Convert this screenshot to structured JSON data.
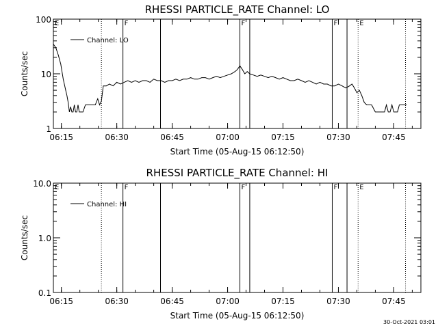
{
  "chart_data": [
    {
      "type": "line",
      "title": "RHESSI PARTICLE_RATE Channel: LO",
      "xlabel": "Start Time (05-Aug-15 06:12:50)",
      "ylabel": "Counts/sec",
      "y_scale": "log",
      "ylim": [
        1,
        100
      ],
      "xlim": [
        "06:12:50",
        "07:52:20"
      ],
      "x_ticks": [
        "06:15",
        "06:30",
        "06:45",
        "07:00",
        "07:15",
        "07:30",
        "07:45"
      ],
      "y_ticks": [
        "1",
        "10",
        "100"
      ],
      "legend": {
        "entries": [
          "Channel: LO"
        ],
        "placement": "top-left"
      },
      "grid": false,
      "flags": [
        {
          "label": "E",
          "time": "06:12:50",
          "style": "dotted"
        },
        {
          "time": "06:25:50",
          "style": "dotted"
        },
        {
          "label": "F",
          "time": "06:31:40",
          "style": "solid"
        },
        {
          "time": "06:41:50",
          "style": "solid"
        },
        {
          "label": "F",
          "time": "07:03:20",
          "style": "solid"
        },
        {
          "time": "07:06:00",
          "style": "solid"
        },
        {
          "label": "F",
          "time": "07:28:20",
          "style": "solid"
        },
        {
          "time": "07:32:20",
          "style": "solid"
        },
        {
          "label": "E",
          "time": "07:35:20",
          "style": "dotted"
        },
        {
          "time": "07:48:10",
          "style": "dotted"
        }
      ],
      "series": [
        {
          "name": "Channel: LO",
          "x": [
            "06:12:50",
            "06:13:30",
            "06:14:10",
            "06:14:50",
            "06:15:30",
            "06:16:10",
            "06:16:30",
            "06:16:50",
            "06:17:10",
            "06:17:30",
            "06:17:50",
            "06:18:10",
            "06:18:30",
            "06:18:50",
            "06:19:10",
            "06:19:30",
            "06:19:50",
            "06:20:10",
            "06:20:30",
            "06:20:50",
            "06:21:30",
            "06:22:10",
            "06:22:50",
            "06:23:30",
            "06:24:10",
            "06:24:50",
            "06:25:20",
            "06:25:50",
            "06:26:20",
            "06:27:10",
            "06:28:00",
            "06:29:00",
            "06:30:00",
            "06:31:00",
            "06:32:00",
            "06:33:00",
            "06:34:00",
            "06:35:00",
            "06:36:00",
            "06:37:00",
            "06:38:00",
            "06:39:00",
            "06:40:00",
            "06:41:00",
            "06:42:00",
            "06:43:00",
            "06:44:00",
            "06:45:00",
            "06:46:00",
            "06:47:00",
            "06:48:00",
            "06:49:00",
            "06:50:00",
            "06:51:00",
            "06:52:00",
            "06:53:00",
            "06:54:00",
            "06:55:00",
            "06:56:00",
            "06:57:00",
            "06:58:00",
            "06:59:00",
            "07:00:00",
            "07:01:00",
            "07:02:00",
            "07:02:40",
            "07:03:20",
            "07:04:00",
            "07:04:40",
            "07:05:20",
            "07:06:00",
            "07:07:00",
            "07:08:00",
            "07:09:00",
            "07:10:00",
            "07:11:00",
            "07:12:00",
            "07:13:00",
            "07:14:00",
            "07:15:00",
            "07:16:00",
            "07:17:00",
            "07:18:00",
            "07:19:00",
            "07:20:00",
            "07:21:00",
            "07:22:00",
            "07:23:00",
            "07:24:00",
            "07:25:00",
            "07:26:00",
            "07:27:00",
            "07:28:00",
            "07:29:00",
            "07:30:00",
            "07:31:00",
            "07:32:00",
            "07:33:00",
            "07:33:40",
            "07:34:20",
            "07:35:00",
            "07:35:40",
            "07:36:20",
            "07:37:00",
            "07:37:40",
            "07:38:20",
            "07:39:00",
            "07:40:00",
            "07:41:00",
            "07:42:00",
            "07:42:30",
            "07:43:00",
            "07:43:30",
            "07:44:00",
            "07:44:30",
            "07:45:00",
            "07:45:30",
            "07:46:00",
            "07:46:30",
            "07:47:00",
            "07:47:30",
            "07:48:00",
            "07:48:30"
          ],
          "y": [
            35,
            30,
            22,
            15,
            8,
            5,
            4,
            3,
            2,
            2.5,
            2,
            2,
            2.7,
            2,
            2,
            2.7,
            2,
            2,
            2,
            2,
            2.7,
            2.7,
            2.7,
            2.7,
            2.7,
            3.5,
            2.7,
            3.2,
            6,
            6,
            6.5,
            6,
            7,
            6.5,
            7,
            7.5,
            7,
            7.5,
            7,
            7.5,
            7.5,
            7,
            8,
            7.5,
            7.5,
            7,
            7.5,
            7.5,
            8,
            7.5,
            8,
            8,
            8.5,
            8,
            8,
            8.5,
            8.5,
            8,
            8.5,
            9,
            8.5,
            9,
            9.5,
            10,
            11,
            12,
            14,
            12,
            10,
            11,
            10,
            9.5,
            9,
            9.5,
            9,
            8.5,
            9,
            8.5,
            8,
            8.5,
            8,
            7.5,
            7.5,
            8,
            7.5,
            7,
            7.5,
            7,
            6.5,
            7,
            6.5,
            6.5,
            6,
            6,
            6.5,
            6,
            5.5,
            6,
            6.5,
            5.5,
            4.5,
            5,
            4,
            3,
            2.7,
            2.7,
            2.7,
            2,
            2,
            2,
            2,
            2.7,
            2,
            2,
            2.7,
            2,
            2,
            2,
            2.7,
            2.7,
            2.7,
            2.7,
            2.7
          ]
        }
      ]
    },
    {
      "type": "line",
      "title": "RHESSI PARTICLE_RATE Channel: HI",
      "xlabel": "Start Time (05-Aug-15 06:12:50)",
      "ylabel": "Counts/sec",
      "y_scale": "log",
      "ylim": [
        0.1,
        10
      ],
      "xlim": [
        "06:12:50",
        "07:52:20"
      ],
      "x_ticks": [
        "06:15",
        "06:30",
        "06:45",
        "07:00",
        "07:15",
        "07:30",
        "07:45"
      ],
      "y_ticks": [
        "0.1",
        "1.0",
        "10.0"
      ],
      "legend": {
        "entries": [
          "Channel: HI"
        ],
        "placement": "top-left"
      },
      "grid": false,
      "flags": [
        {
          "label": "E",
          "time": "06:12:50",
          "style": "dotted"
        },
        {
          "time": "06:25:50",
          "style": "dotted"
        },
        {
          "label": "F",
          "time": "06:31:40",
          "style": "solid"
        },
        {
          "time": "06:41:50",
          "style": "solid"
        },
        {
          "label": "F",
          "time": "07:03:20",
          "style": "solid"
        },
        {
          "time": "07:06:00",
          "style": "solid"
        },
        {
          "label": "F",
          "time": "07:28:20",
          "style": "solid"
        },
        {
          "time": "07:32:20",
          "style": "solid"
        },
        {
          "label": "E",
          "time": "07:35:20",
          "style": "dotted"
        },
        {
          "time": "07:48:10",
          "style": "dotted"
        }
      ],
      "series": [
        {
          "name": "Channel: HI",
          "x": [],
          "y": []
        }
      ]
    }
  ],
  "footer": {
    "stamp": "30-Oct-2021 03:01"
  }
}
